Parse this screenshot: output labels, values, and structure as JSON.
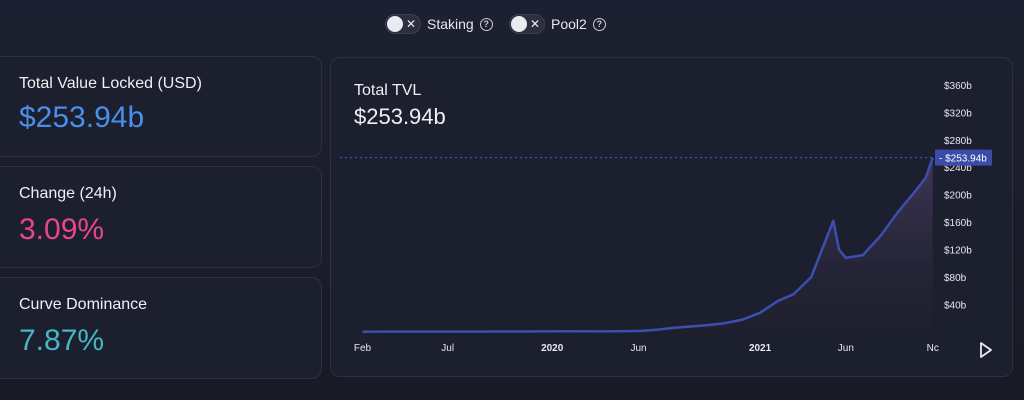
{
  "toggles": [
    {
      "label": "Staking",
      "state": "off"
    },
    {
      "label": "Pool2",
      "state": "off"
    }
  ],
  "cards": {
    "tvl": {
      "title": "Total Value Locked (USD)",
      "value": "$253.94b",
      "color": "#4a8fe8"
    },
    "change": {
      "title": "Change (24h)",
      "value": "3.09%",
      "color": "#e8468a"
    },
    "dominance": {
      "title": "Curve Dominance",
      "value": "7.87%",
      "color": "#45b6c4"
    }
  },
  "chart": {
    "title": "Total TVL",
    "value": "$253.94b",
    "line_color": "#3c4fb0",
    "current_label": "$253.94b"
  },
  "chart_data": {
    "type": "area",
    "title": "Total TVL",
    "ylabel": "",
    "xlabel": "",
    "ylim": [
      0,
      370
    ],
    "y_unit": "b",
    "y_ticks": [
      "$40b",
      "$80b",
      "$120b",
      "$160b",
      "$200b",
      "$240b",
      "$280b",
      "$320b",
      "$360b"
    ],
    "x_ticks": [
      "Feb",
      "Jul",
      "2020",
      "Jun",
      "2021",
      "Jun",
      "Nov"
    ],
    "x_tick_display": [
      "Feb",
      "Jul",
      "2020",
      "Jun",
      "2021",
      "Jun",
      "Nc"
    ],
    "x_tick_bold": [
      false,
      false,
      true,
      false,
      true,
      false,
      false
    ],
    "current_value": 253.94,
    "series": [
      {
        "x": [
          "2019-02",
          "2019-05",
          "2019-08",
          "2019-11",
          "2020-02",
          "2020-04",
          "2020-06",
          "2020-07",
          "2020-08",
          "2020-09",
          "2020-10",
          "2020-11",
          "2020-12",
          "2021-01",
          "2021-02",
          "2021-03",
          "2021-04",
          "2021-05-10",
          "2021-05-20",
          "2021-06",
          "2021-07",
          "2021-08",
          "2021-09",
          "2021-10",
          "2021-10-20",
          "2021-11"
        ],
        "values": [
          0.5,
          0.6,
          0.6,
          0.7,
          1,
          0.9,
          1.5,
          3,
          6,
          8,
          10,
          13,
          18,
          28,
          45,
          55,
          80,
          162,
          120,
          108,
          112,
          140,
          175,
          205,
          225,
          253.94
        ]
      }
    ]
  }
}
